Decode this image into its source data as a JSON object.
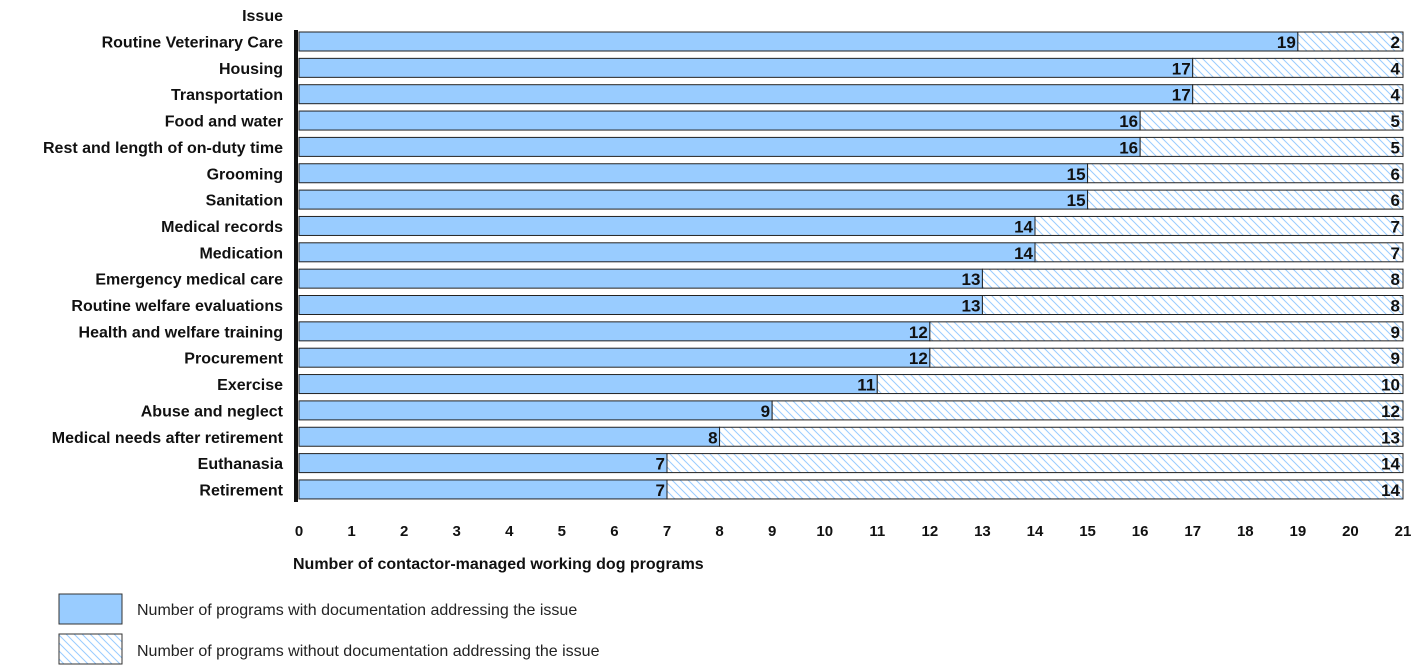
{
  "chart_data": {
    "type": "bar",
    "orientation": "horizontal",
    "stacked": true,
    "category_axis_title": "Issue",
    "xlabel": "Number of contactor-managed working dog programs",
    "xlim": [
      0,
      21
    ],
    "xticks": [
      0,
      1,
      2,
      3,
      4,
      5,
      6,
      7,
      8,
      9,
      10,
      11,
      12,
      13,
      14,
      15,
      16,
      17,
      18,
      19,
      20,
      21
    ],
    "grid": false,
    "legend_placement": "bottom-left",
    "categories": [
      "Routine Veterinary Care",
      "Housing",
      "Transportation",
      "Food and water",
      "Rest and length of on-duty time",
      "Grooming",
      "Sanitation",
      "Medical records",
      "Medication",
      "Emergency medical care",
      "Routine welfare evaluations",
      "Health and welfare training",
      "Procurement",
      "Exercise",
      "Abuse and neglect",
      "Medical needs after retirement",
      "Euthanasia",
      "Retirement"
    ],
    "series": [
      {
        "name": "Number of programs with documentation addressing the issue",
        "color": "#99ccff",
        "pattern": "solid",
        "values": [
          19,
          17,
          17,
          16,
          16,
          15,
          15,
          14,
          14,
          13,
          13,
          12,
          12,
          11,
          9,
          8,
          7,
          7
        ]
      },
      {
        "name": "Number of programs without documentation addressing the issue",
        "color": "#99ccff",
        "pattern": "diagonal-hatch",
        "values": [
          2,
          4,
          4,
          5,
          5,
          6,
          6,
          7,
          7,
          8,
          8,
          9,
          9,
          10,
          12,
          13,
          14,
          14
        ]
      }
    ]
  }
}
